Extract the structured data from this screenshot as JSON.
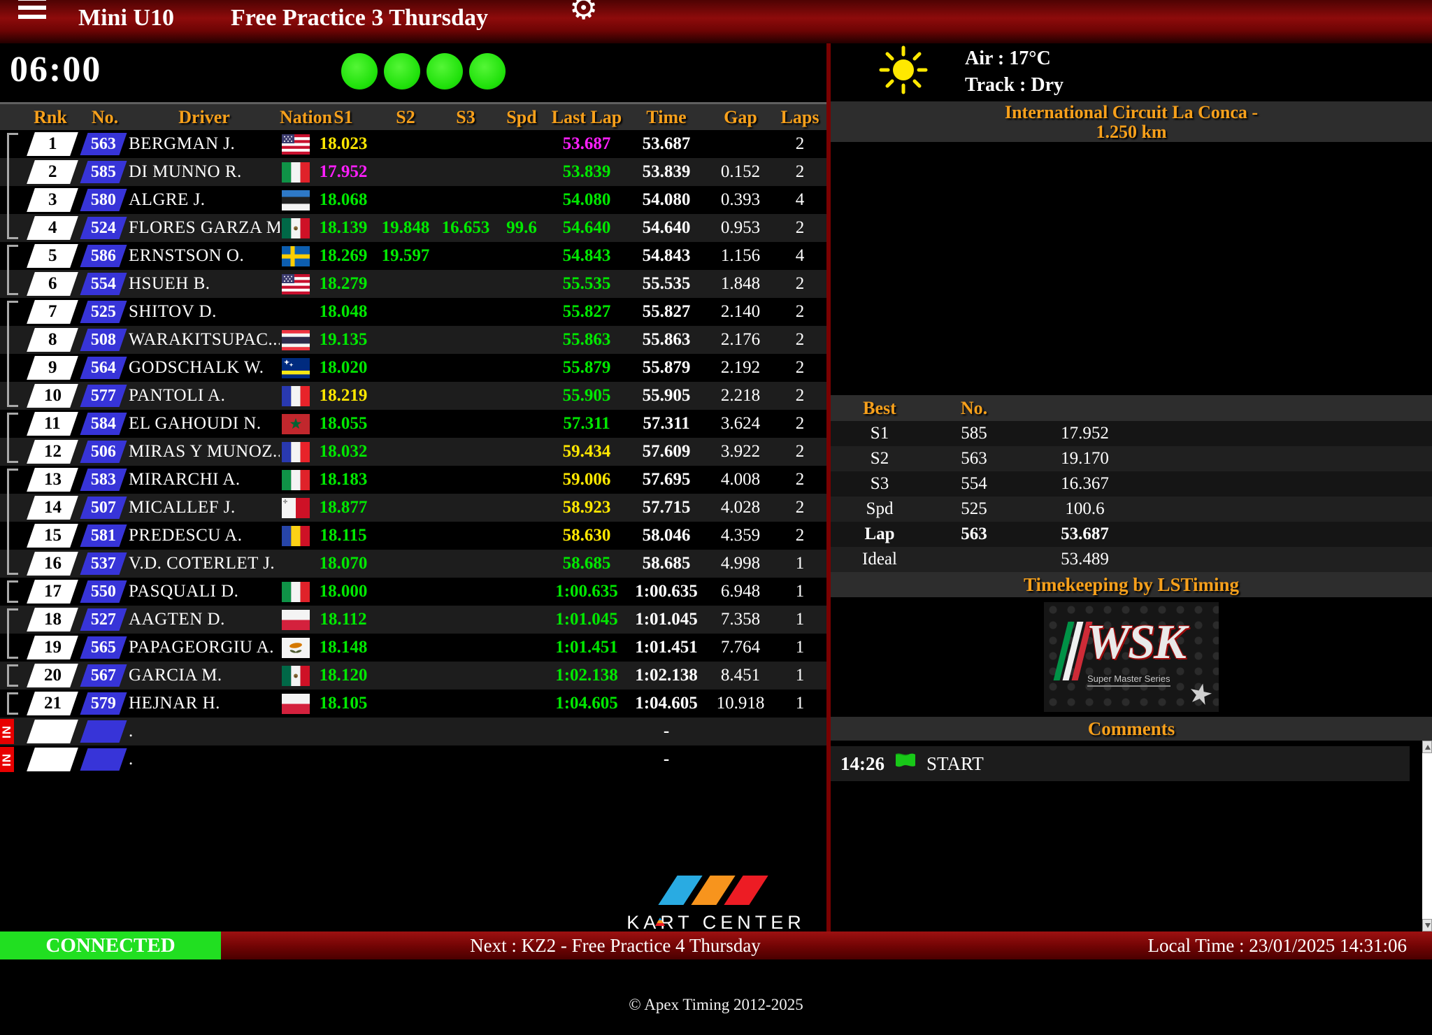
{
  "header": {
    "class_name": "Mini U10",
    "session_name": "Free Practice 3 Thursday"
  },
  "icons": {
    "menu": "hamburger-icon",
    "settings": "gear-icon",
    "weather": "sun-icon",
    "comment_flag": "green-flag-icon"
  },
  "timer": "06:00",
  "lights": {
    "count": 4,
    "color": "#1fe10a"
  },
  "colors": {
    "accent_orange": "#f7a01b",
    "time_green": "#00e800",
    "time_yellow": "#ffe800",
    "time_magenta": "#ff1fff",
    "number_blue": "#3734d8",
    "connected_green": "#21df21",
    "bar_red": "#8e0b0b"
  },
  "table": {
    "headers": [
      "Rnk",
      "No.",
      "Driver",
      "Nation",
      "S1",
      "S2",
      "S3",
      "Spd",
      "Last Lap",
      "Time",
      "Gap",
      "Laps"
    ],
    "rows": [
      {
        "rnk": "1",
        "no": "563",
        "driver": "BERGMAN J.",
        "flag": "us",
        "s1": "18.023",
        "s1c": "y",
        "s2": "",
        "s3": "",
        "spd": "",
        "last": "53.687",
        "lastc": "m",
        "time": "53.687",
        "gap": "",
        "laps": "2",
        "bracket": "start"
      },
      {
        "rnk": "2",
        "no": "585",
        "driver": "DI MUNNO R.",
        "flag": "it",
        "s1": "17.952",
        "s1c": "m",
        "s2": "",
        "s3": "",
        "spd": "",
        "last": "53.839",
        "lastc": "g",
        "time": "53.839",
        "gap": "0.152",
        "laps": "2",
        "bracket": "mid"
      },
      {
        "rnk": "3",
        "no": "580",
        "driver": "ALGRE J.",
        "flag": "ee",
        "s1": "18.068",
        "s1c": "g",
        "s2": "",
        "s3": "",
        "spd": "",
        "last": "54.080",
        "lastc": "g",
        "time": "54.080",
        "gap": "0.393",
        "laps": "4",
        "bracket": "mid"
      },
      {
        "rnk": "4",
        "no": "524",
        "driver": "FLORES GARZA M.",
        "flag": "mx",
        "s1": "18.139",
        "s1c": "g",
        "s2": "19.848",
        "s3": "16.653",
        "spd": "99.6",
        "last": "54.640",
        "lastc": "g",
        "time": "54.640",
        "gap": "0.953",
        "laps": "2",
        "bracket": "end"
      },
      {
        "rnk": "5",
        "no": "586",
        "driver": "ERNSTSON O.",
        "flag": "se",
        "s1": "18.269",
        "s1c": "g",
        "s2": "19.597",
        "s3": "",
        "spd": "",
        "last": "54.843",
        "lastc": "g",
        "time": "54.843",
        "gap": "1.156",
        "laps": "4",
        "bracket": "start"
      },
      {
        "rnk": "6",
        "no": "554",
        "driver": "HSUEH B.",
        "flag": "us",
        "s1": "18.279",
        "s1c": "g",
        "s2": "",
        "s3": "",
        "spd": "",
        "last": "55.535",
        "lastc": "g",
        "time": "55.535",
        "gap": "1.848",
        "laps": "2",
        "bracket": "end"
      },
      {
        "rnk": "7",
        "no": "525",
        "driver": "SHITOV D.",
        "flag": "none",
        "s1": "18.048",
        "s1c": "g",
        "s2": "",
        "s3": "",
        "spd": "",
        "last": "55.827",
        "lastc": "g",
        "time": "55.827",
        "gap": "2.140",
        "laps": "2",
        "bracket": "start"
      },
      {
        "rnk": "8",
        "no": "508",
        "driver": "WARAKITSUPAC...",
        "flag": "th",
        "s1": "19.135",
        "s1c": "g",
        "s2": "",
        "s3": "",
        "spd": "",
        "last": "55.863",
        "lastc": "g",
        "time": "55.863",
        "gap": "2.176",
        "laps": "2",
        "bracket": "mid"
      },
      {
        "rnk": "9",
        "no": "564",
        "driver": "GODSCHALK W.",
        "flag": "cw",
        "s1": "18.020",
        "s1c": "g",
        "s2": "",
        "s3": "",
        "spd": "",
        "last": "55.879",
        "lastc": "g",
        "time": "55.879",
        "gap": "2.192",
        "laps": "2",
        "bracket": "mid"
      },
      {
        "rnk": "10",
        "no": "577",
        "driver": "PANTOLI A.",
        "flag": "fr",
        "s1": "18.219",
        "s1c": "y",
        "s2": "",
        "s3": "",
        "spd": "",
        "last": "55.905",
        "lastc": "g",
        "time": "55.905",
        "gap": "2.218",
        "laps": "2",
        "bracket": "end"
      },
      {
        "rnk": "11",
        "no": "584",
        "driver": "EL GAHOUDI N.",
        "flag": "ma",
        "s1": "18.055",
        "s1c": "g",
        "s2": "",
        "s3": "",
        "spd": "",
        "last": "57.311",
        "lastc": "g",
        "time": "57.311",
        "gap": "3.624",
        "laps": "2",
        "bracket": "start"
      },
      {
        "rnk": "12",
        "no": "506",
        "driver": "MIRAS Y MUNOZ...",
        "flag": "fr",
        "s1": "18.032",
        "s1c": "g",
        "s2": "",
        "s3": "",
        "spd": "",
        "last": "59.434",
        "lastc": "y",
        "time": "57.609",
        "gap": "3.922",
        "laps": "2",
        "bracket": "end"
      },
      {
        "rnk": "13",
        "no": "583",
        "driver": "MIRARCHI A.",
        "flag": "it",
        "s1": "18.183",
        "s1c": "g",
        "s2": "",
        "s3": "",
        "spd": "",
        "last": "59.006",
        "lastc": "y",
        "time": "57.695",
        "gap": "4.008",
        "laps": "2",
        "bracket": "start"
      },
      {
        "rnk": "14",
        "no": "507",
        "driver": "MICALLEF J.",
        "flag": "mt",
        "s1": "18.877",
        "s1c": "g",
        "s2": "",
        "s3": "",
        "spd": "",
        "last": "58.923",
        "lastc": "y",
        "time": "57.715",
        "gap": "4.028",
        "laps": "2",
        "bracket": "mid"
      },
      {
        "rnk": "15",
        "no": "581",
        "driver": "PREDESCU A.",
        "flag": "ro",
        "s1": "18.115",
        "s1c": "g",
        "s2": "",
        "s3": "",
        "spd": "",
        "last": "58.630",
        "lastc": "y",
        "time": "58.046",
        "gap": "4.359",
        "laps": "2",
        "bracket": "mid"
      },
      {
        "rnk": "16",
        "no": "537",
        "driver": "V.D. COTERLET J.",
        "flag": "none",
        "s1": "18.070",
        "s1c": "g",
        "s2": "",
        "s3": "",
        "spd": "",
        "last": "58.685",
        "lastc": "g",
        "time": "58.685",
        "gap": "4.998",
        "laps": "1",
        "bracket": "end"
      },
      {
        "rnk": "17",
        "no": "550",
        "driver": "PASQUALI D.",
        "flag": "it",
        "s1": "18.000",
        "s1c": "g",
        "s2": "",
        "s3": "",
        "spd": "",
        "last": "1:00.635",
        "lastc": "g",
        "time": "1:00.635",
        "gap": "6.948",
        "laps": "1",
        "bracket": "single"
      },
      {
        "rnk": "18",
        "no": "527",
        "driver": "AAGTEN D.",
        "flag": "pl",
        "s1": "18.112",
        "s1c": "g",
        "s2": "",
        "s3": "",
        "spd": "",
        "last": "1:01.045",
        "lastc": "g",
        "time": "1:01.045",
        "gap": "7.358",
        "laps": "1",
        "bracket": "start"
      },
      {
        "rnk": "19",
        "no": "565",
        "driver": "PAPAGEORGIU A.",
        "flag": "cy",
        "s1": "18.148",
        "s1c": "g",
        "s2": "",
        "s3": "",
        "spd": "",
        "last": "1:01.451",
        "lastc": "g",
        "time": "1:01.451",
        "gap": "7.764",
        "laps": "1",
        "bracket": "end"
      },
      {
        "rnk": "20",
        "no": "567",
        "driver": "GARCIA M.",
        "flag": "mx",
        "s1": "18.120",
        "s1c": "g",
        "s2": "",
        "s3": "",
        "spd": "",
        "last": "1:02.138",
        "lastc": "g",
        "time": "1:02.138",
        "gap": "8.451",
        "laps": "1",
        "bracket": "single"
      },
      {
        "rnk": "21",
        "no": "579",
        "driver": "HEJNAR H.",
        "flag": "pl",
        "s1": "18.105",
        "s1c": "g",
        "s2": "",
        "s3": "",
        "spd": "",
        "last": "1:04.605",
        "lastc": "g",
        "time": "1:04.605",
        "gap": "10.918",
        "laps": "1",
        "bracket": "single"
      }
    ],
    "in_rows": [
      {
        "label": "IN",
        "driver": ".",
        "time": "-"
      },
      {
        "label": "IN",
        "driver": ".",
        "time": "-"
      }
    ]
  },
  "sidebar": {
    "weather": {
      "air": "Air : 17°C",
      "track": "Track : Dry"
    },
    "circuit_line1": "International Circuit La Conca -",
    "circuit_line2": "1.250 km",
    "best": {
      "headers": [
        "Best",
        "No."
      ],
      "rows": [
        {
          "label": "S1",
          "no": "585",
          "value": "17.952",
          "bold": false
        },
        {
          "label": "S2",
          "no": "563",
          "value": "19.170",
          "bold": false
        },
        {
          "label": "S3",
          "no": "554",
          "value": "16.367",
          "bold": false
        },
        {
          "label": "Spd",
          "no": "525",
          "value": "100.6",
          "bold": false
        },
        {
          "label": "Lap",
          "no": "563",
          "value": "53.687",
          "bold": true
        },
        {
          "label": "Ideal",
          "no": "",
          "value": "53.489",
          "bold": false
        }
      ]
    },
    "timekeeping": "Timekeeping by LSTiming",
    "wsk": {
      "title": "WSK",
      "subtitle": "Super Master Series",
      "star": "★"
    },
    "comments": {
      "title": "Comments",
      "entries": [
        {
          "time": "14:26",
          "icon": "green-flag",
          "text": "START"
        }
      ]
    }
  },
  "bottombar": {
    "status": "CONNECTED",
    "next": "Next : KZ2 - Free Practice 4 Thursday",
    "local_time": "Local Time : 23/01/2025 14:31:06"
  },
  "kart_center": "KART CENTER",
  "footer": "© Apex Timing 2012-2025"
}
